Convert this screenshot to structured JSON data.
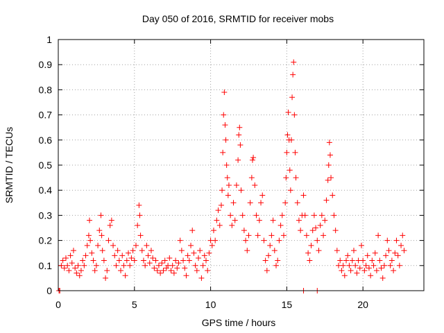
{
  "chart_data": {
    "type": "scatter",
    "title": "Day 050 of 2016, SRMTID for receiver mobs",
    "xlabel": "GPS time / hours",
    "ylabel": "SRMTID / TECUs",
    "xlim": [
      0,
      24
    ],
    "ylim": [
      0,
      1
    ],
    "xticks": [
      0,
      5,
      10,
      15,
      20
    ],
    "xtick_labels": [
      "0",
      "5",
      "10",
      "15",
      "20"
    ],
    "yticks": [
      0,
      0.1,
      0.2,
      0.3,
      0.4,
      0.5,
      0.6,
      0.7,
      0.8,
      0.9,
      1
    ],
    "ytick_labels": [
      "0",
      "0.1",
      "0.2",
      "0.3",
      "0.4",
      "0.5",
      "0.6",
      "0.7",
      "0.8",
      "0.9",
      "1"
    ],
    "grid": true,
    "marker": "+",
    "series": [
      {
        "name": "SRMTID",
        "color": "#ff0000",
        "points": [
          [
            0.05,
            0.0
          ],
          [
            0.1,
            0.0
          ],
          [
            16.1,
            0.0
          ],
          [
            17.0,
            0.0
          ],
          [
            0.2,
            0.1
          ],
          [
            0.3,
            0.12
          ],
          [
            0.4,
            0.09
          ],
          [
            0.5,
            0.13
          ],
          [
            0.6,
            0.1
          ],
          [
            0.7,
            0.08
          ],
          [
            0.8,
            0.14
          ],
          [
            0.9,
            0.11
          ],
          [
            1.0,
            0.16
          ],
          [
            1.1,
            0.09
          ],
          [
            1.2,
            0.07
          ],
          [
            1.3,
            0.1
          ],
          [
            1.4,
            0.06
          ],
          [
            1.5,
            0.08
          ],
          [
            1.6,
            0.12
          ],
          [
            1.7,
            0.1
          ],
          [
            1.8,
            0.14
          ],
          [
            1.9,
            0.18
          ],
          [
            2.0,
            0.22
          ],
          [
            2.05,
            0.28
          ],
          [
            2.1,
            0.2
          ],
          [
            2.2,
            0.15
          ],
          [
            2.3,
            0.12
          ],
          [
            2.4,
            0.08
          ],
          [
            2.5,
            0.1
          ],
          [
            2.6,
            0.18
          ],
          [
            2.7,
            0.24
          ],
          [
            2.8,
            0.3
          ],
          [
            2.85,
            0.22
          ],
          [
            2.9,
            0.16
          ],
          [
            3.0,
            0.12
          ],
          [
            3.1,
            0.05
          ],
          [
            3.2,
            0.08
          ],
          [
            3.3,
            0.2
          ],
          [
            3.4,
            0.26
          ],
          [
            3.5,
            0.28
          ],
          [
            3.6,
            0.18
          ],
          [
            3.7,
            0.14
          ],
          [
            3.8,
            0.1
          ],
          [
            3.9,
            0.16
          ],
          [
            4.0,
            0.12
          ],
          [
            4.1,
            0.08
          ],
          [
            4.2,
            0.14
          ],
          [
            4.3,
            0.1
          ],
          [
            4.4,
            0.06
          ],
          [
            4.5,
            0.12
          ],
          [
            4.6,
            0.15
          ],
          [
            4.7,
            0.1
          ],
          [
            4.8,
            0.13
          ],
          [
            4.9,
            0.16
          ],
          [
            5.0,
            0.12
          ],
          [
            5.1,
            0.18
          ],
          [
            5.2,
            0.26
          ],
          [
            5.3,
            0.34
          ],
          [
            5.35,
            0.3
          ],
          [
            5.4,
            0.22
          ],
          [
            5.5,
            0.16
          ],
          [
            5.6,
            0.12
          ],
          [
            5.7,
            0.1
          ],
          [
            5.8,
            0.18
          ],
          [
            5.9,
            0.14
          ],
          [
            6.0,
            0.11
          ],
          [
            6.1,
            0.16
          ],
          [
            6.2,
            0.13
          ],
          [
            6.3,
            0.09
          ],
          [
            6.4,
            0.12
          ],
          [
            6.5,
            0.08
          ],
          [
            6.6,
            0.1
          ],
          [
            6.7,
            0.07
          ],
          [
            6.8,
            0.11
          ],
          [
            6.9,
            0.08
          ],
          [
            7.0,
            0.12
          ],
          [
            7.1,
            0.09
          ],
          [
            7.2,
            0.1
          ],
          [
            7.3,
            0.13
          ],
          [
            7.4,
            0.08
          ],
          [
            7.5,
            0.1
          ],
          [
            7.6,
            0.07
          ],
          [
            7.7,
            0.12
          ],
          [
            7.8,
            0.09
          ],
          [
            7.9,
            0.11
          ],
          [
            8.0,
            0.2
          ],
          [
            8.1,
            0.16
          ],
          [
            8.2,
            0.12
          ],
          [
            8.3,
            0.09
          ],
          [
            8.4,
            0.06
          ],
          [
            8.5,
            0.14
          ],
          [
            8.6,
            0.12
          ],
          [
            8.7,
            0.18
          ],
          [
            8.8,
            0.24
          ],
          [
            8.9,
            0.15
          ],
          [
            9.0,
            0.1
          ],
          [
            9.1,
            0.08
          ],
          [
            9.2,
            0.13
          ],
          [
            9.3,
            0.16
          ],
          [
            9.4,
            0.05
          ],
          [
            9.5,
            0.1
          ],
          [
            9.6,
            0.14
          ],
          [
            9.7,
            0.12
          ],
          [
            9.8,
            0.08
          ],
          [
            9.9,
            0.15
          ],
          [
            10.0,
            0.2
          ],
          [
            10.1,
            0.18
          ],
          [
            10.2,
            0.24
          ],
          [
            10.3,
            0.2
          ],
          [
            10.4,
            0.28
          ],
          [
            10.5,
            0.32
          ],
          [
            10.6,
            0.26
          ],
          [
            10.7,
            0.34
          ],
          [
            10.75,
            0.4
          ],
          [
            10.8,
            0.55
          ],
          [
            10.85,
            0.7
          ],
          [
            10.9,
            0.79
          ],
          [
            10.95,
            0.66
          ],
          [
            11.0,
            0.6
          ],
          [
            11.05,
            0.5
          ],
          [
            11.1,
            0.45
          ],
          [
            11.15,
            0.38
          ],
          [
            11.2,
            0.42
          ],
          [
            11.3,
            0.3
          ],
          [
            11.4,
            0.26
          ],
          [
            11.5,
            0.35
          ],
          [
            11.6,
            0.28
          ],
          [
            11.7,
            0.42
          ],
          [
            11.8,
            0.52
          ],
          [
            11.85,
            0.62
          ],
          [
            11.9,
            0.65
          ],
          [
            11.95,
            0.58
          ],
          [
            12.0,
            0.4
          ],
          [
            12.1,
            0.3
          ],
          [
            12.2,
            0.24
          ],
          [
            12.3,
            0.2
          ],
          [
            12.4,
            0.16
          ],
          [
            12.5,
            0.22
          ],
          [
            12.6,
            0.35
          ],
          [
            12.7,
            0.45
          ],
          [
            12.75,
            0.52
          ],
          [
            12.8,
            0.53
          ],
          [
            12.9,
            0.42
          ],
          [
            13.0,
            0.3
          ],
          [
            13.1,
            0.22
          ],
          [
            13.2,
            0.28
          ],
          [
            13.3,
            0.35
          ],
          [
            13.4,
            0.38
          ],
          [
            13.5,
            0.2
          ],
          [
            13.6,
            0.12
          ],
          [
            13.7,
            0.08
          ],
          [
            13.8,
            0.14
          ],
          [
            13.9,
            0.18
          ],
          [
            14.0,
            0.22
          ],
          [
            14.1,
            0.28
          ],
          [
            14.2,
            0.16
          ],
          [
            14.3,
            0.1
          ],
          [
            14.4,
            0.12
          ],
          [
            14.5,
            0.2
          ],
          [
            14.6,
            0.26
          ],
          [
            14.7,
            0.3
          ],
          [
            14.8,
            0.22
          ],
          [
            14.9,
            0.35
          ],
          [
            14.95,
            0.45
          ],
          [
            15.0,
            0.55
          ],
          [
            15.05,
            0.62
          ],
          [
            15.1,
            0.71
          ],
          [
            15.15,
            0.6
          ],
          [
            15.2,
            0.48
          ],
          [
            15.25,
            0.4
          ],
          [
            15.3,
            0.6
          ],
          [
            15.35,
            0.77
          ],
          [
            15.4,
            0.86
          ],
          [
            15.45,
            0.91
          ],
          [
            15.5,
            0.7
          ],
          [
            15.55,
            0.55
          ],
          [
            15.6,
            0.45
          ],
          [
            15.7,
            0.35
          ],
          [
            15.8,
            0.28
          ],
          [
            15.9,
            0.24
          ],
          [
            16.0,
            0.3
          ],
          [
            16.1,
            0.38
          ],
          [
            16.2,
            0.3
          ],
          [
            16.3,
            0.22
          ],
          [
            16.4,
            0.15
          ],
          [
            16.5,
            0.12
          ],
          [
            16.6,
            0.18
          ],
          [
            16.7,
            0.24
          ],
          [
            16.8,
            0.3
          ],
          [
            16.9,
            0.25
          ],
          [
            17.0,
            0.2
          ],
          [
            17.1,
            0.16
          ],
          [
            17.2,
            0.26
          ],
          [
            17.3,
            0.3
          ],
          [
            17.4,
            0.22
          ],
          [
            17.5,
            0.28
          ],
          [
            17.6,
            0.36
          ],
          [
            17.7,
            0.44
          ],
          [
            17.75,
            0.5
          ],
          [
            17.8,
            0.59
          ],
          [
            17.85,
            0.54
          ],
          [
            17.9,
            0.45
          ],
          [
            18.0,
            0.38
          ],
          [
            18.1,
            0.3
          ],
          [
            18.2,
            0.24
          ],
          [
            18.3,
            0.16
          ],
          [
            18.4,
            0.1
          ],
          [
            18.5,
            0.12
          ],
          [
            18.6,
            0.08
          ],
          [
            18.7,
            0.1
          ],
          [
            18.8,
            0.06
          ],
          [
            18.9,
            0.12
          ],
          [
            19.0,
            0.14
          ],
          [
            19.1,
            0.1
          ],
          [
            19.2,
            0.08
          ],
          [
            19.3,
            0.12
          ],
          [
            19.4,
            0.16
          ],
          [
            19.5,
            0.1
          ],
          [
            19.6,
            0.07
          ],
          [
            19.7,
            0.12
          ],
          [
            19.8,
            0.09
          ],
          [
            19.9,
            0.18
          ],
          [
            20.0,
            0.12
          ],
          [
            20.1,
            0.08
          ],
          [
            20.2,
            0.1
          ],
          [
            20.3,
            0.14
          ],
          [
            20.4,
            0.09
          ],
          [
            20.5,
            0.06
          ],
          [
            20.6,
            0.12
          ],
          [
            20.7,
            0.1
          ],
          [
            20.8,
            0.15
          ],
          [
            20.9,
            0.08
          ],
          [
            21.0,
            0.22
          ],
          [
            21.1,
            0.12
          ],
          [
            21.2,
            0.09
          ],
          [
            21.3,
            0.05
          ],
          [
            21.4,
            0.1
          ],
          [
            21.5,
            0.14
          ],
          [
            21.6,
            0.2
          ],
          [
            21.7,
            0.16
          ],
          [
            21.8,
            0.1
          ],
          [
            21.9,
            0.12
          ],
          [
            22.0,
            0.08
          ],
          [
            22.1,
            0.15
          ],
          [
            22.2,
            0.2
          ],
          [
            22.3,
            0.14
          ],
          [
            22.4,
            0.1
          ],
          [
            22.5,
            0.18
          ],
          [
            22.6,
            0.22
          ],
          [
            22.7,
            0.16
          ]
        ]
      }
    ]
  }
}
